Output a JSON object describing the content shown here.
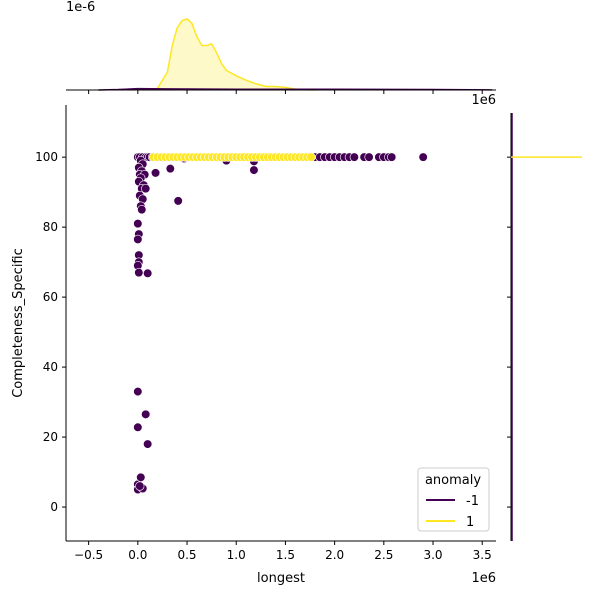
{
  "chart_data": {
    "type": "scatter",
    "xlabel": "longest",
    "ylabel": "Completeness_Specific",
    "x_offset_label": "1e6",
    "top_offset_label": "1e-6",
    "xlim": [
      -0.73,
      3.64
    ],
    "ylim": [
      -9.7,
      114.9
    ],
    "xticks": [
      -0.5,
      0.0,
      0.5,
      1.0,
      1.5,
      2.0,
      2.5,
      3.0,
      3.5
    ],
    "xtick_labels": [
      "−0.5",
      "0.0",
      "0.5",
      "1.0",
      "1.5",
      "2.0",
      "2.5",
      "3.0",
      "3.5"
    ],
    "yticks": [
      0,
      20,
      40,
      60,
      80,
      100
    ],
    "ytick_labels": [
      "0",
      "20",
      "40",
      "60",
      "80",
      "100"
    ],
    "legend": {
      "title": "anomaly",
      "position": "lower-right",
      "entries": [
        {
          "label": "-1",
          "color": "#440154"
        },
        {
          "label": "1",
          "color": "#fde725"
        }
      ]
    },
    "series": [
      {
        "name": "-1",
        "color": "#440154",
        "points": [
          [
            0.0,
            100
          ],
          [
            0.02,
            100
          ],
          [
            0.05,
            100
          ],
          [
            0.08,
            100
          ],
          [
            0.1,
            100
          ],
          [
            0.12,
            100
          ],
          [
            0.15,
            100
          ],
          [
            0.2,
            100
          ],
          [
            0.03,
            99
          ],
          [
            0.05,
            98
          ],
          [
            0.01,
            97
          ],
          [
            0.04,
            96
          ],
          [
            0.02,
            95
          ],
          [
            0.07,
            95
          ],
          [
            0.03,
            94
          ],
          [
            0.01,
            93
          ],
          [
            0.06,
            92
          ],
          [
            0.04,
            91
          ],
          [
            0.08,
            91
          ],
          [
            0.02,
            89
          ],
          [
            0.05,
            88
          ],
          [
            0.03,
            86
          ],
          [
            0.04,
            85
          ],
          [
            0.0,
            81
          ],
          [
            0.01,
            78
          ],
          [
            0.0,
            76.5
          ],
          [
            0.01,
            72
          ],
          [
            0.01,
            70
          ],
          [
            0.0,
            69
          ],
          [
            0.01,
            67
          ],
          [
            0.1,
            66.8
          ],
          [
            0.0,
            33
          ],
          [
            0.08,
            26.5
          ],
          [
            0.1,
            18
          ],
          [
            0.0,
            22.8
          ],
          [
            0.0,
            6.5
          ],
          [
            0.03,
            8.5
          ],
          [
            0.0,
            5
          ],
          [
            0.05,
            5.3
          ],
          [
            0.02,
            6
          ],
          [
            0.18,
            95.5
          ],
          [
            0.33,
            96.7
          ],
          [
            0.41,
            87.5
          ],
          [
            0.47,
            99.6
          ],
          [
            0.9,
            99
          ],
          [
            1.18,
            98.8
          ],
          [
            1.18,
            96.3
          ],
          [
            1.5,
            100
          ],
          [
            1.55,
            100
          ],
          [
            1.6,
            100
          ],
          [
            1.65,
            100
          ],
          [
            1.7,
            100
          ],
          [
            1.75,
            100
          ],
          [
            1.8,
            100
          ],
          [
            1.85,
            100
          ],
          [
            1.9,
            100
          ],
          [
            1.95,
            100
          ],
          [
            2.0,
            100
          ],
          [
            2.05,
            100
          ],
          [
            2.1,
            100
          ],
          [
            2.15,
            100
          ],
          [
            2.2,
            100
          ],
          [
            2.3,
            100
          ],
          [
            2.35,
            100
          ],
          [
            2.45,
            100
          ],
          [
            2.5,
            100
          ],
          [
            2.55,
            100
          ],
          [
            2.58,
            100
          ],
          [
            2.9,
            100
          ]
        ]
      },
      {
        "name": "1",
        "color": "#fde725",
        "x_range": [
          0.16,
          1.76
        ],
        "x_step": 0.04,
        "y": 100
      }
    ],
    "top_kde": {
      "ylim": [
        0,
        0.9
      ],
      "series": [
        {
          "name": "1",
          "color": "#fde725",
          "points": [
            [
              0.15,
              0
            ],
            [
              0.2,
              0.02
            ],
            [
              0.3,
              0.2
            ],
            [
              0.35,
              0.5
            ],
            [
              0.4,
              0.7
            ],
            [
              0.45,
              0.78
            ],
            [
              0.5,
              0.8
            ],
            [
              0.55,
              0.75
            ],
            [
              0.6,
              0.6
            ],
            [
              0.65,
              0.5
            ],
            [
              0.7,
              0.5
            ],
            [
              0.75,
              0.52
            ],
            [
              0.8,
              0.42
            ],
            [
              0.85,
              0.3
            ],
            [
              0.9,
              0.22
            ],
            [
              1.0,
              0.16
            ],
            [
              1.1,
              0.11
            ],
            [
              1.2,
              0.07
            ],
            [
              1.3,
              0.04
            ],
            [
              1.4,
              0.04
            ],
            [
              1.5,
              0.03
            ],
            [
              1.6,
              0.01
            ],
            [
              1.7,
              0.003
            ],
            [
              1.8,
              0
            ]
          ]
        },
        {
          "name": "-1",
          "color": "#440154",
          "points": [
            [
              -0.4,
              0
            ],
            [
              -0.2,
              0.005
            ],
            [
              0,
              0.015
            ],
            [
              0.3,
              0.012
            ],
            [
              1,
              0.008
            ],
            [
              2,
              0.008
            ],
            [
              3,
              0.005
            ],
            [
              3.6,
              0.002
            ]
          ]
        }
      ]
    }
  }
}
